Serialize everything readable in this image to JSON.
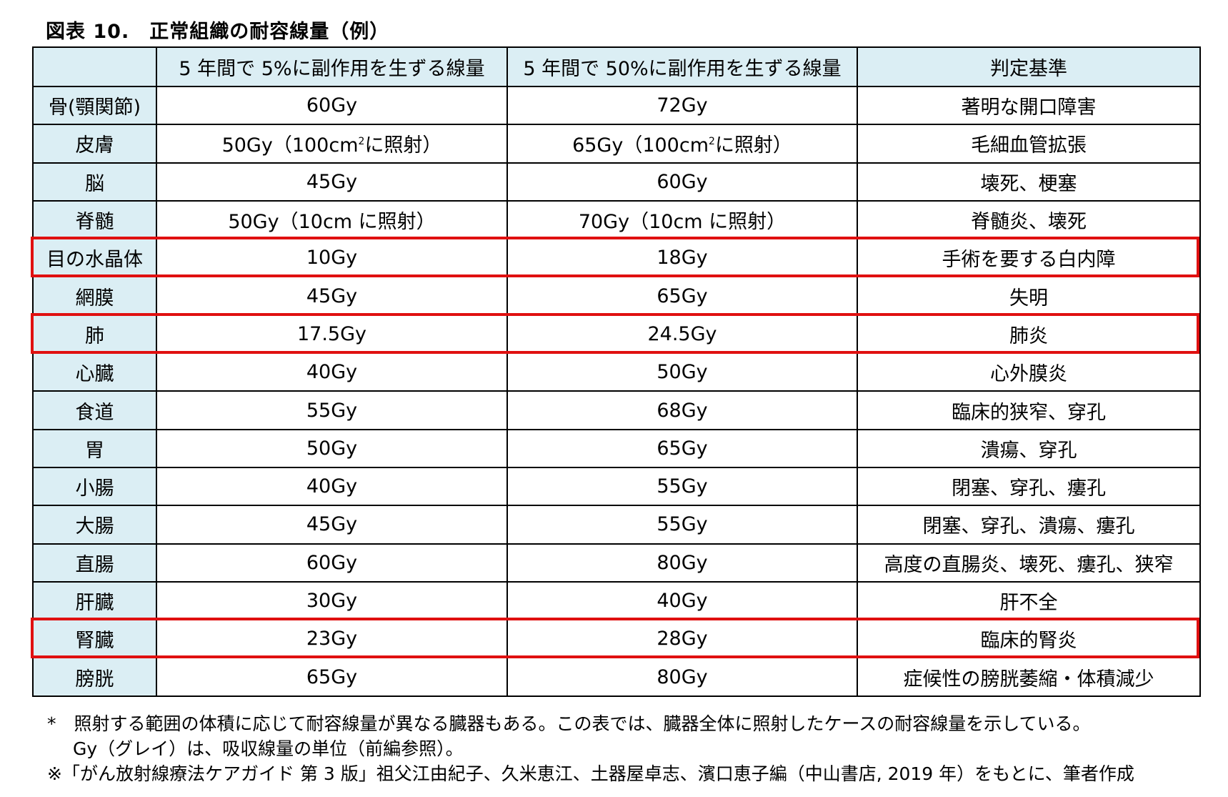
{
  "title": "図表 10.　正常組織の耐容線量（例）",
  "table": {
    "headers": [
      "",
      "5 年間で 5%に副作用を生ずる線量",
      "5 年間で 50%に副作用を生ずる線量",
      "判定基準"
    ],
    "rows": [
      {
        "organ": "骨(顎関節)",
        "td5": "60Gy",
        "td50": "72Gy",
        "criterion": "著明な開口障害",
        "highlighted": false
      },
      {
        "organ": "皮膚",
        "td5": "50Gy（100cm",
        "td5_sup": "2",
        "td5_suffix": "に照射）",
        "td50": "65Gy（100cm",
        "td50_sup": "2",
        "td50_suffix": "に照射）",
        "criterion": "毛細血管拡張",
        "highlighted": false
      },
      {
        "organ": "脳",
        "td5": "45Gy",
        "td50": "60Gy",
        "criterion": "壊死、梗塞",
        "highlighted": false
      },
      {
        "organ": "脊髄",
        "td5": "50Gy（10cm に照射）",
        "td50": "70Gy（10cm に照射）",
        "criterion": "脊髄炎、壊死",
        "highlighted": false
      },
      {
        "organ": "目の水晶体",
        "td5": "10Gy",
        "td50": "18Gy",
        "criterion": "手術を要する白内障",
        "highlighted": true
      },
      {
        "organ": "網膜",
        "td5": "45Gy",
        "td50": "65Gy",
        "criterion": "失明",
        "highlighted": false
      },
      {
        "organ": "肺",
        "td5": "17.5Gy",
        "td50": "24.5Gy",
        "criterion": "肺炎",
        "highlighted": true
      },
      {
        "organ": "心臓",
        "td5": "40Gy",
        "td50": "50Gy",
        "criterion": "心外膜炎",
        "highlighted": false
      },
      {
        "organ": "食道",
        "td5": "55Gy",
        "td50": "68Gy",
        "criterion": "臨床的狭窄、穿孔",
        "highlighted": false
      },
      {
        "organ": "胃",
        "td5": "50Gy",
        "td50": "65Gy",
        "criterion": "潰瘍、穿孔",
        "highlighted": false
      },
      {
        "organ": "小腸",
        "td5": "40Gy",
        "td50": "55Gy",
        "criterion": "閉塞、穿孔、瘻孔",
        "highlighted": false
      },
      {
        "organ": "大腸",
        "td5": "45Gy",
        "td50": "55Gy",
        "criterion": "閉塞、穿孔、潰瘍、瘻孔",
        "highlighted": false
      },
      {
        "organ": "直腸",
        "td5": "60Gy",
        "td50": "80Gy",
        "criterion": "高度の直腸炎、壊死、瘻孔、狭窄",
        "highlighted": false
      },
      {
        "organ": "肝臓",
        "td5": "30Gy",
        "td50": "40Gy",
        "criterion": "肝不全",
        "highlighted": false
      },
      {
        "organ": "腎臓",
        "td5": "23Gy",
        "td50": "28Gy",
        "criterion": "臨床的腎炎",
        "highlighted": true
      },
      {
        "organ": "膀胱",
        "td5": "65Gy",
        "td50": "80Gy",
        "criterion": "症候性の膀胱萎縮・体積減少",
        "highlighted": false
      }
    ]
  },
  "notes": {
    "line1": "*　照射する範囲の体積に応じて耐容線量が異なる臓器もある。この表では、臓器全体に照射したケースの耐容線量を示している。",
    "line2": "Gy（グレイ）は、吸収線量の単位（前編参照）。",
    "line3": "※「がん放射線療法ケアガイド 第 3 版」祖父江由紀子、久米恵江、土器屋卓志、濱口恵子編（中山書店, 2019 年）をもとに、筆者作成"
  },
  "colors": {
    "header_bg": "#dbeef4",
    "highlight_border": "#e01010"
  }
}
